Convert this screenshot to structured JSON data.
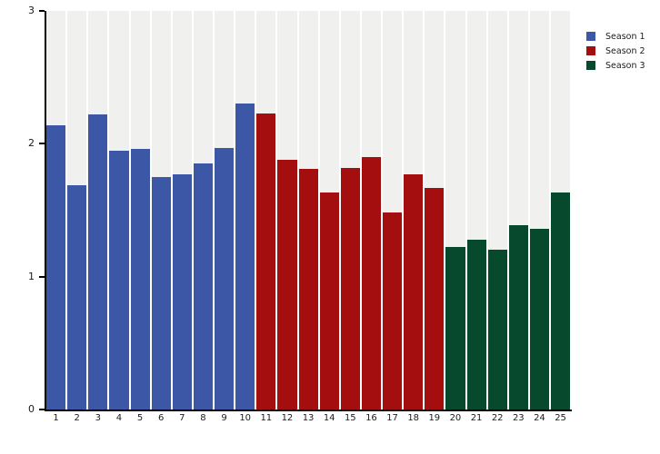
{
  "chart_data": {
    "type": "bar",
    "title": "",
    "xlabel": "",
    "ylabel": "",
    "ylim": [
      0,
      3
    ],
    "yticks": [
      "0",
      "1",
      "2",
      "3"
    ],
    "grid": false,
    "legend_position": "top-right",
    "plot_band_color": "#F0F0EF",
    "axis_color": "#000000",
    "categories": [
      "1",
      "2",
      "3",
      "4",
      "5",
      "6",
      "7",
      "8",
      "9",
      "10",
      "11",
      "12",
      "13",
      "14",
      "15",
      "16",
      "17",
      "18",
      "19",
      "20",
      "21",
      "22",
      "23",
      "24",
      "25"
    ],
    "series": [
      {
        "name": "Season 1",
        "color": "#3B57A6",
        "values": [
          2.14,
          1.69,
          2.22,
          1.95,
          1.96,
          1.75,
          1.77,
          1.85,
          1.97,
          2.3
        ]
      },
      {
        "name": "Season 2",
        "color": "#A40E0E",
        "values": [
          2.23,
          1.88,
          1.81,
          1.63,
          1.82,
          1.9,
          1.48,
          1.77,
          1.67
        ]
      },
      {
        "name": "Season 3",
        "color": "#06492C",
        "values": [
          1.22,
          1.28,
          1.2,
          1.39,
          1.36,
          1.63
        ]
      }
    ]
  }
}
